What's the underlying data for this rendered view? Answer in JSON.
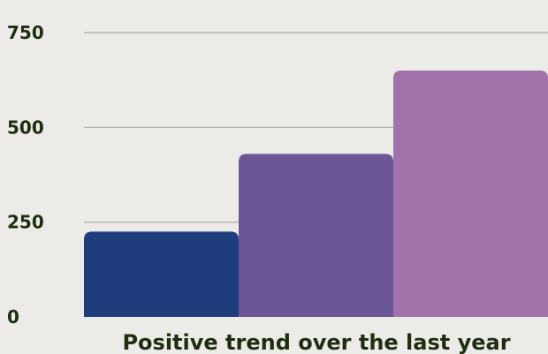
{
  "chart_data": {
    "type": "bar",
    "categories": [
      "",
      "",
      ""
    ],
    "values": [
      225,
      430,
      650
    ],
    "colors": [
      "#1f3c7c",
      "#6a5595",
      "#a272aa"
    ],
    "title": "",
    "xlabel": "Positive trend over the last year",
    "ylabel": "",
    "ylim": [
      0,
      750
    ],
    "yticks": [
      0,
      250,
      500,
      750
    ],
    "ytick_labels": [
      "0",
      "250",
      "500",
      "750"
    ],
    "grid": true,
    "legend": "none"
  },
  "colors": {
    "background": "#ecebe8",
    "text": "#1f2d10",
    "grid": "#a8a8a4"
  }
}
